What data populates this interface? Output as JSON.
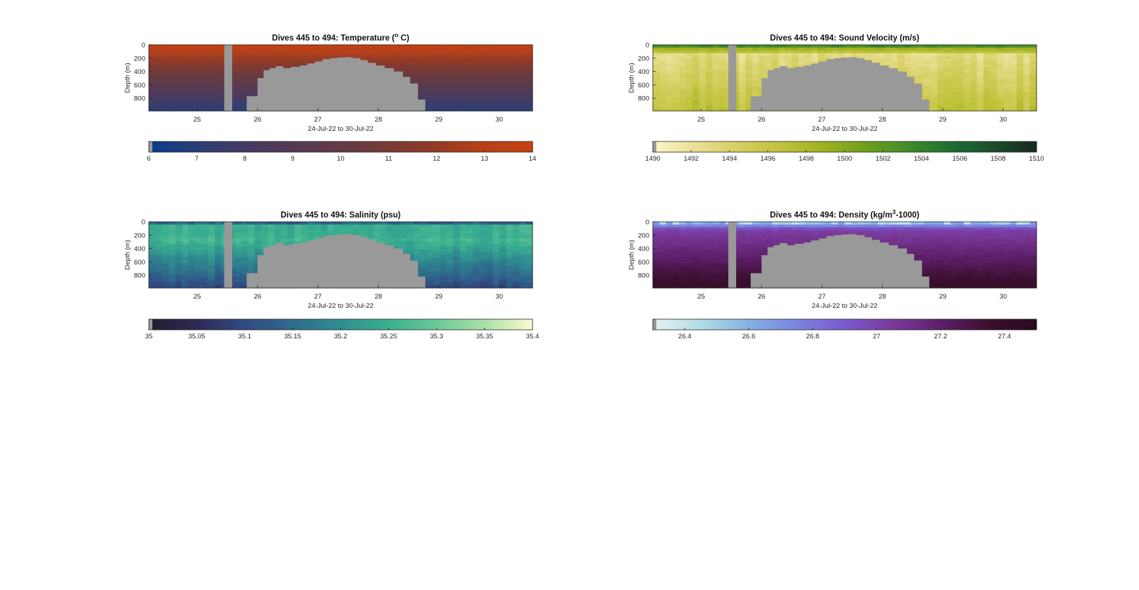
{
  "chart_data": [
    {
      "type": "heatmap",
      "title": "Dives 445 to 494: Temperature (° C)",
      "title_parts": {
        "pre": "Dives 445 to 494: Temperature (",
        "sup": "o",
        "post": " C)"
      },
      "xlabel": "24-Jul-22 to 30-Jul-22",
      "ylabel": "Depth (m)",
      "xlim": [
        24.2,
        30.55
      ],
      "ylim": [
        0,
        990
      ],
      "x_ticks": [
        25,
        26,
        27,
        28,
        29,
        30
      ],
      "y_ticks": [
        0,
        200,
        400,
        600,
        800
      ],
      "colorbar": {
        "min": 6,
        "max": 14,
        "ticks": [
          6,
          7,
          8,
          9,
          10,
          11,
          12,
          13,
          14
        ],
        "tick_labels": [
          "6",
          "7",
          "8",
          "9",
          "10",
          "11",
          "12",
          "13",
          "14"
        ]
      },
      "colormap": [
        "#0a3a8c",
        "#2e3f72",
        "#4a3a5e",
        "#5a3a4e",
        "#6e3a3c",
        "#8c3a2a",
        "#b4401a",
        "#c8420e"
      ],
      "profile": "temperature"
    },
    {
      "type": "heatmap",
      "title": "Dives 445 to 494: Sound Velocity (m/s)",
      "title_parts": {
        "pre": "Dives 445 to 494: Sound Velocity (m/s)",
        "sup": "",
        "post": ""
      },
      "xlabel": "24-Jul-22 to 30-Jul-22",
      "ylabel": "Depth (m)",
      "xlim": [
        24.2,
        30.55
      ],
      "ylim": [
        0,
        990
      ],
      "x_ticks": [
        25,
        26,
        27,
        28,
        29,
        30
      ],
      "y_ticks": [
        0,
        200,
        400,
        600,
        800
      ],
      "colorbar": {
        "min": 1490,
        "max": 1510,
        "ticks": [
          1490,
          1492,
          1494,
          1496,
          1498,
          1500,
          1502,
          1504,
          1506,
          1508,
          1510
        ],
        "tick_labels": [
          "1490",
          "1492",
          "1494",
          "1496",
          "1498",
          "1500",
          "1502",
          "1504",
          "1506",
          "1508",
          "1510"
        ]
      },
      "colormap": [
        "#fbf7c8",
        "#e9e095",
        "#d6cf62",
        "#bfc23a",
        "#9fb220",
        "#6f9f1e",
        "#3f8c2a",
        "#1f6e32",
        "#1a4e2e",
        "#182a1e"
      ],
      "profile": "sound"
    },
    {
      "type": "heatmap",
      "title": "Dives 445 to 494: Salinity (psu)",
      "title_parts": {
        "pre": "Dives 445 to 494: Salinity (psu)",
        "sup": "",
        "post": ""
      },
      "xlabel": "24-Jul-22 to 30-Jul-22",
      "ylabel": "Depth (m)",
      "xlim": [
        24.2,
        30.55
      ],
      "ylim": [
        0,
        990
      ],
      "x_ticks": [
        25,
        26,
        27,
        28,
        29,
        30
      ],
      "y_ticks": [
        0,
        200,
        400,
        600,
        800
      ],
      "colorbar": {
        "min": 35,
        "max": 35.4,
        "ticks": [
          35,
          35.05,
          35.1,
          35.15,
          35.2,
          35.25,
          35.3,
          35.35,
          35.4
        ],
        "tick_labels": [
          "35",
          "35.05",
          "35.1",
          "35.15",
          "35.2",
          "35.25",
          "35.3",
          "35.35",
          "35.4"
        ]
      },
      "colormap": [
        "#231b2e",
        "#2e2a55",
        "#314a82",
        "#2e6c8c",
        "#2f8e90",
        "#3aaf90",
        "#6cc997",
        "#a8e0a8",
        "#fdfbd2"
      ],
      "profile": "salinity"
    },
    {
      "type": "heatmap",
      "title": "Dives 445 to 494: Density (kg/m³-1000)",
      "title_parts": {
        "pre": "Dives 445 to 494: Density (kg/m",
        "sup": "3",
        "post": "-1000)"
      },
      "xlabel": "24-Jul-22 to 30-Jul-22",
      "ylabel": "Depth (m)",
      "xlim": [
        24.2,
        30.55
      ],
      "ylim": [
        0,
        990
      ],
      "x_ticks": [
        25,
        26,
        27,
        28,
        29,
        30
      ],
      "y_ticks": [
        0,
        200,
        400,
        600,
        800
      ],
      "colorbar": {
        "min": 26.3,
        "max": 27.5,
        "ticks": [
          26.4,
          26.6,
          26.8,
          27,
          27.2,
          27.4
        ],
        "tick_labels": [
          "26.4",
          "26.6",
          "26.8",
          "27",
          "27.2",
          "27.4"
        ]
      },
      "colormap": [
        "#e6f3f3",
        "#b2dbe6",
        "#84b2e4",
        "#7a84e0",
        "#7b5ad0",
        "#7a3a9c",
        "#5e1f6a",
        "#3a0f2e",
        "#2a0a1e"
      ],
      "profile": "density"
    }
  ],
  "missing_data_color": "#999999",
  "gap_column": [
    25.45,
    25.58
  ],
  "bottom_mask": [
    [
      25.82,
      26.0,
      770
    ],
    [
      26.0,
      26.1,
      500
    ],
    [
      26.1,
      26.2,
      380
    ],
    [
      26.2,
      26.3,
      350
    ],
    [
      26.3,
      26.42,
      320
    ],
    [
      26.42,
      26.55,
      350
    ],
    [
      26.55,
      26.7,
      330
    ],
    [
      26.7,
      26.82,
      310
    ],
    [
      26.82,
      26.95,
      280
    ],
    [
      26.95,
      27.07,
      250
    ],
    [
      27.07,
      27.2,
      215
    ],
    [
      27.2,
      27.32,
      200
    ],
    [
      27.32,
      27.45,
      190
    ],
    [
      27.45,
      27.57,
      185
    ],
    [
      27.57,
      27.7,
      200
    ],
    [
      27.7,
      27.82,
      230
    ],
    [
      27.82,
      27.95,
      270
    ],
    [
      27.95,
      28.1,
      310
    ],
    [
      28.1,
      28.25,
      350
    ],
    [
      28.25,
      28.4,
      400
    ],
    [
      28.4,
      28.52,
      480
    ],
    [
      28.52,
      28.65,
      580
    ],
    [
      28.65,
      28.77,
      820
    ]
  ]
}
